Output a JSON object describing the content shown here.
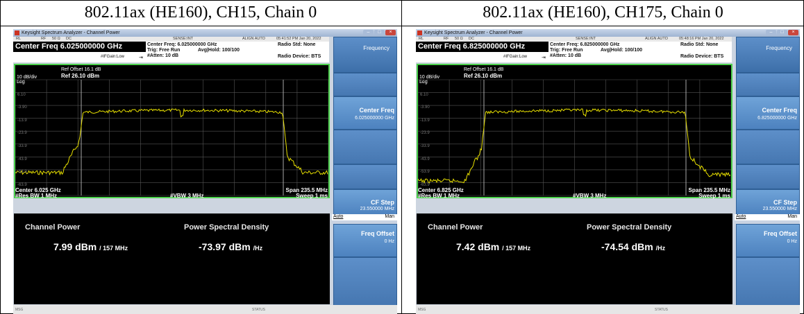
{
  "panels": [
    {
      "caption": "802.11ax (HE160), CH15, Chain 0",
      "window_title": "Keysight Spectrum Analyzer - Channel Power",
      "status_bar": {
        "rl": "RL",
        "rf": "RF",
        "ohm": "50 Ω",
        "dc": "DC",
        "sense": "SENSE:INT",
        "align": "ALIGN AUTO",
        "time": "05:41:52 PM Jan 20, 2022"
      },
      "center_freq_title": "Center Freq 6.025000000 GHz",
      "settings": {
        "center_freq": "Center Freq: 6.025000000 GHz",
        "trig": "Trig: Free Run",
        "avg_hold": "Avg|Hold: 100/100",
        "atten": "#Atten: 10 dB",
        "ifgain": "#IFGain:Low",
        "radio_std": "Radio Std: None",
        "radio_device": "Radio Device: BTS"
      },
      "ref": {
        "offset": "Ref Offset 16.1 dB",
        "level": "Ref 26.10 dBm",
        "scale": "10 dB/div",
        "log": "Log"
      },
      "y_ticks": [
        "16.1",
        "6.10",
        "-3.90",
        "-13.9",
        "-23.9",
        "-33.9",
        "-43.9",
        "-53.9",
        "-63.9"
      ],
      "bottom": {
        "center": "Center 6.025 GHz",
        "res_bw": "#Res BW 1 MHz",
        "vbw": "#VBW 3 MHz",
        "span": "Span 235.5 MHz",
        "sweep": "Sweep 1 ms"
      },
      "results": {
        "channel_power_label": "Channel Power",
        "channel_power_value": "7.99 dBm",
        "channel_power_bw": "/ 157 MHz",
        "psd_label": "Power Spectral Density",
        "psd_value": "-73.97 dBm",
        "psd_unit": "/Hz"
      },
      "softkeys": {
        "menu": "Frequency",
        "center_freq": "Center Freq",
        "center_freq_value": "6.025000000 GHz",
        "cf_step": "CF Step",
        "cf_step_value": "23.550000 MHz",
        "auto": "Auto",
        "man": "Man",
        "freq_offset": "Freq Offset",
        "freq_offset_value": "0 Hz"
      },
      "msg": "MSG",
      "status": "STATUS"
    },
    {
      "caption": "802.11ax (HE160), CH175, Chain 0",
      "window_title": "Keysight Spectrum Analyzer - Channel Power",
      "status_bar": {
        "rl": "RL",
        "rf": "RF",
        "ohm": "50 Ω",
        "dc": "DC",
        "sense": "SENSE:INT",
        "align": "ALIGN AUTO",
        "time": "05:48:16 PM Jan 20, 2022"
      },
      "center_freq_title": "Center Freq 6.825000000 GHz",
      "settings": {
        "center_freq": "Center Freq: 6.825000000 GHz",
        "trig": "Trig: Free Run",
        "avg_hold": "Avg|Hold: 100/100",
        "atten": "#Atten: 10 dB",
        "ifgain": "#IFGain:Low",
        "radio_std": "Radio Std: None",
        "radio_device": "Radio Device: BTS"
      },
      "ref": {
        "offset": "Ref Offset 16.1 dB",
        "level": "Ref 26.10 dBm",
        "scale": "10 dB/div",
        "log": "Log"
      },
      "y_ticks": [
        "16.1",
        "6.10",
        "-3.90",
        "-13.9",
        "-23.9",
        "-33.9",
        "-43.9",
        "-53.9",
        "-63.9"
      ],
      "bottom": {
        "center": "Center 6.825 GHz",
        "res_bw": "#Res BW 1 MHz",
        "vbw": "#VBW 3 MHz",
        "span": "Span 235.5 MHz",
        "sweep": "Sweep 1 ms"
      },
      "results": {
        "channel_power_label": "Channel Power",
        "channel_power_value": "7.42 dBm",
        "channel_power_bw": "/ 157 MHz",
        "psd_label": "Power Spectral Density",
        "psd_value": "-74.54 dBm",
        "psd_unit": "/Hz"
      },
      "softkeys": {
        "menu": "Frequency",
        "center_freq": "Center Freq",
        "center_freq_value": "6.825000000 GHz",
        "cf_step": "CF Step",
        "cf_step_value": "23.550000 MHz",
        "auto": "Auto",
        "man": "Man",
        "freq_offset": "Freq Offset",
        "freq_offset_value": "0 Hz"
      },
      "msg": "MSG",
      "status": "STATUS"
    }
  ],
  "colors": {
    "trace": "#e8e000",
    "graticule": "#555555",
    "frame": "#4cd04c",
    "marker_lines": "#bbbbbb"
  }
}
